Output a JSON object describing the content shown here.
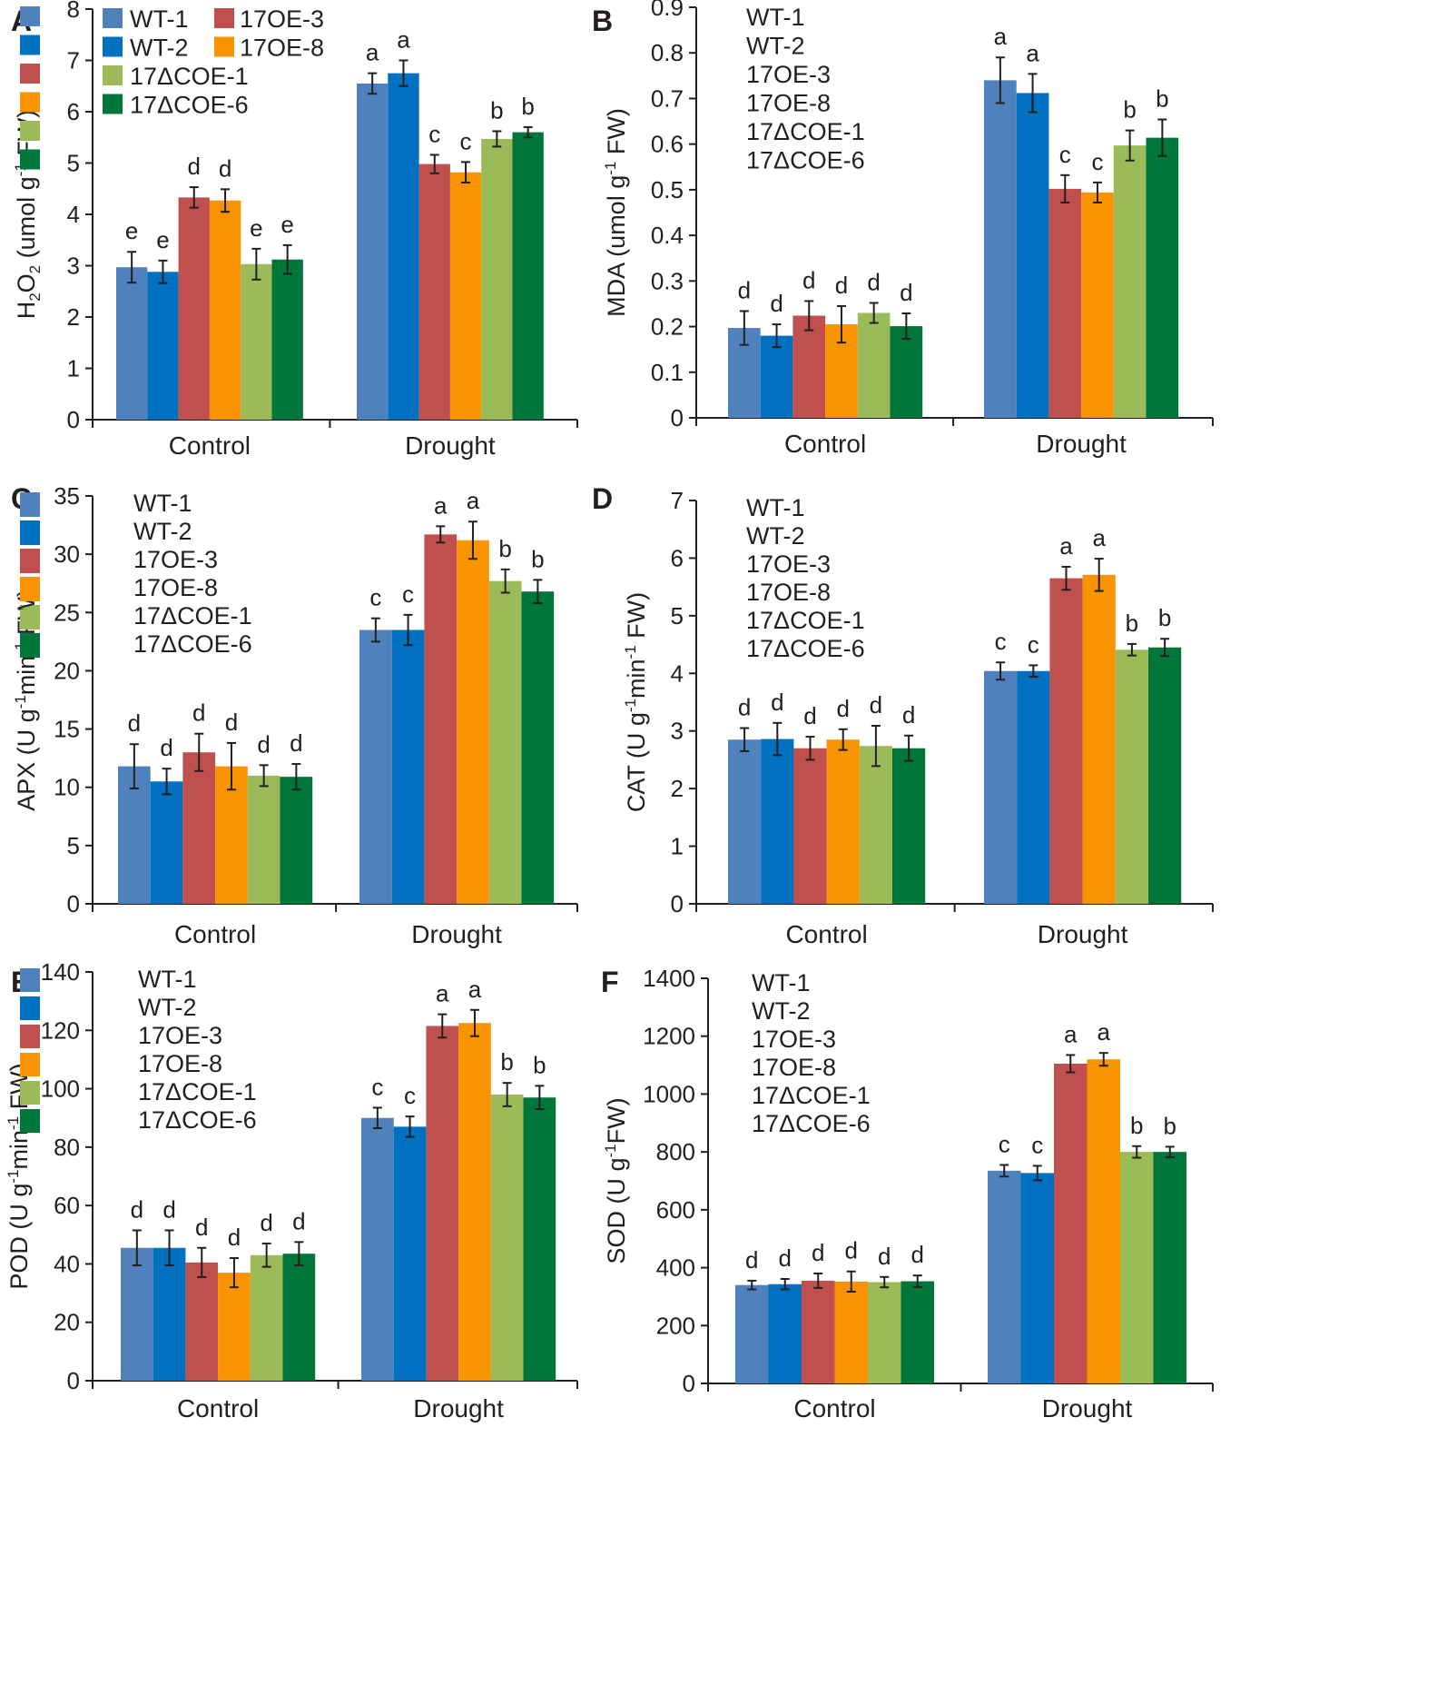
{
  "colors": {
    "WT-1": "#4f81bd",
    "WT-2": "#0070c0",
    "17OE-3": "#c0504d",
    "17OE-8": "#f79400",
    "17ΔCOE-1": "#9bbb59",
    "17ΔCOE-6": "#00763a"
  },
  "chart_data": [
    {
      "panel": "A",
      "type": "bar",
      "categories": [
        "Control",
        "Drought"
      ],
      "ylim": [
        0,
        8
      ],
      "yticks": [
        0,
        1,
        2,
        3,
        4,
        5,
        6,
        7,
        8
      ],
      "ylabel": {
        "pre": "H",
        "sub": "2",
        "mid": "O",
        "sub2": "2",
        "post": " (umol g",
        "sup": "-1",
        "tail": " FW)"
      },
      "legend_layout": "two-column",
      "legend_order": [
        "WT-1",
        "17OE-3",
        "WT-2",
        "17OE-8",
        "17ΔCOE-1",
        "17ΔCOE-6"
      ],
      "series": [
        {
          "name": "WT-1",
          "values": [
            2.97,
            6.55
          ],
          "errors": [
            0.3,
            0.2
          ],
          "letters": [
            "e",
            "a"
          ]
        },
        {
          "name": "WT-2",
          "values": [
            2.88,
            6.75
          ],
          "errors": [
            0.22,
            0.25
          ],
          "letters": [
            "e",
            "a"
          ]
        },
        {
          "name": "17OE-3",
          "values": [
            4.33,
            4.98
          ],
          "errors": [
            0.2,
            0.18
          ],
          "letters": [
            "d",
            "c"
          ]
        },
        {
          "name": "17OE-8",
          "values": [
            4.27,
            4.82
          ],
          "errors": [
            0.22,
            0.2
          ],
          "letters": [
            "d",
            "c"
          ]
        },
        {
          "name": "17ΔCOE-1",
          "values": [
            3.03,
            5.47
          ],
          "errors": [
            0.3,
            0.15
          ],
          "letters": [
            "e",
            "b"
          ]
        },
        {
          "name": "17ΔCOE-6",
          "values": [
            3.12,
            5.6
          ],
          "errors": [
            0.28,
            0.1
          ],
          "letters": [
            "e",
            "b"
          ]
        }
      ]
    },
    {
      "panel": "B",
      "type": "bar",
      "categories": [
        "Control",
        "Drought"
      ],
      "ylim": [
        0,
        0.9
      ],
      "yticks": [
        "0",
        "0.1",
        "0.2",
        "0.3",
        "0.4",
        "0.5",
        "0.6",
        "0.7",
        "0.8",
        "0.9"
      ],
      "ylabel": {
        "pre": "MDA (umol g",
        "sup": "-1",
        "tail": " FW)"
      },
      "legend_layout": "one-column",
      "legend_order": [
        "WT-1",
        "WT-2",
        "17OE-3",
        "17OE-8",
        "17ΔCOE-1",
        "17ΔCOE-6"
      ],
      "series": [
        {
          "name": "WT-1",
          "values": [
            0.197,
            0.74
          ],
          "errors": [
            0.037,
            0.05
          ],
          "letters": [
            "d",
            "a"
          ]
        },
        {
          "name": "WT-2",
          "values": [
            0.18,
            0.712
          ],
          "errors": [
            0.025,
            0.042
          ],
          "letters": [
            "d",
            "a"
          ]
        },
        {
          "name": "17OE-3",
          "values": [
            0.224,
            0.502
          ],
          "errors": [
            0.032,
            0.03
          ],
          "letters": [
            "d",
            "c"
          ]
        },
        {
          "name": "17OE-8",
          "values": [
            0.205,
            0.494
          ],
          "errors": [
            0.04,
            0.022
          ],
          "letters": [
            "d",
            "c"
          ]
        },
        {
          "name": "17ΔCOE-1",
          "values": [
            0.23,
            0.597
          ],
          "errors": [
            0.022,
            0.033
          ],
          "letters": [
            "d",
            "b"
          ]
        },
        {
          "name": "17ΔCOE-6",
          "values": [
            0.201,
            0.614
          ],
          "errors": [
            0.028,
            0.04
          ],
          "letters": [
            "d",
            "b"
          ]
        }
      ]
    },
    {
      "panel": "C",
      "type": "bar",
      "categories": [
        "Control",
        "Drought"
      ],
      "ylim": [
        0,
        35
      ],
      "yticks": [
        0,
        5,
        10,
        15,
        20,
        25,
        30,
        35
      ],
      "ylabel": {
        "pre": "APX (U g",
        "sup": "-1",
        "mid": "min",
        "sup2": "-1",
        "tail": " FW)"
      },
      "legend_layout": "one-column",
      "legend_order": [
        "WT-1",
        "WT-2",
        "17OE-3",
        "17OE-8",
        "17ΔCOE-1",
        "17ΔCOE-6"
      ],
      "series": [
        {
          "name": "WT-1",
          "values": [
            11.8,
            23.5
          ],
          "errors": [
            1.9,
            1.0
          ],
          "letters": [
            "d",
            "c"
          ]
        },
        {
          "name": "WT-2",
          "values": [
            10.5,
            23.5
          ],
          "errors": [
            1.1,
            1.3
          ],
          "letters": [
            "d",
            "c"
          ]
        },
        {
          "name": "17OE-3",
          "values": [
            13.0,
            31.7
          ],
          "errors": [
            1.6,
            0.7
          ],
          "letters": [
            "d",
            "a"
          ]
        },
        {
          "name": "17OE-8",
          "values": [
            11.8,
            31.2
          ],
          "errors": [
            2.0,
            1.6
          ],
          "letters": [
            "d",
            "a"
          ]
        },
        {
          "name": "17ΔCOE-1",
          "values": [
            11.0,
            27.7
          ],
          "errors": [
            0.9,
            1.0
          ],
          "letters": [
            "d",
            "b"
          ]
        },
        {
          "name": "17ΔCOE-6",
          "values": [
            10.9,
            26.8
          ],
          "errors": [
            1.1,
            1.0
          ],
          "letters": [
            "d",
            "b"
          ]
        }
      ]
    },
    {
      "panel": "D",
      "type": "bar",
      "categories": [
        "Control",
        "Drought"
      ],
      "ylim": [
        0,
        7
      ],
      "yticks": [
        0,
        1,
        2,
        3,
        4,
        5,
        6,
        7
      ],
      "ylabel": {
        "pre": "CAT (U g",
        "sup": "-1",
        "mid": "min",
        "sup2": "-1",
        "tail": " FW)"
      },
      "legend_layout": "one-column",
      "legend_order": [
        "WT-1",
        "WT-2",
        "17OE-3",
        "17OE-8",
        "17ΔCOE-1",
        "17ΔCOE-6"
      ],
      "series": [
        {
          "name": "WT-1",
          "values": [
            2.85,
            4.04
          ],
          "errors": [
            0.2,
            0.15
          ],
          "letters": [
            "d",
            "c"
          ]
        },
        {
          "name": "WT-2",
          "values": [
            2.86,
            4.04
          ],
          "errors": [
            0.28,
            0.1
          ],
          "letters": [
            "d",
            "c"
          ]
        },
        {
          "name": "17OE-3",
          "values": [
            2.7,
            5.65
          ],
          "errors": [
            0.2,
            0.2
          ],
          "letters": [
            "d",
            "a"
          ]
        },
        {
          "name": "17OE-8",
          "values": [
            2.85,
            5.71
          ],
          "errors": [
            0.18,
            0.28
          ],
          "letters": [
            "d",
            "a"
          ]
        },
        {
          "name": "17ΔCOE-1",
          "values": [
            2.74,
            4.41
          ],
          "errors": [
            0.35,
            0.1
          ],
          "letters": [
            "d",
            "b"
          ]
        },
        {
          "name": "17ΔCOE-6",
          "values": [
            2.7,
            4.45
          ],
          "errors": [
            0.22,
            0.15
          ],
          "letters": [
            "d",
            "b"
          ]
        }
      ]
    },
    {
      "panel": "E",
      "type": "bar",
      "categories": [
        "Control",
        "Drought"
      ],
      "ylim": [
        0,
        140
      ],
      "yticks": [
        0,
        20,
        40,
        60,
        80,
        100,
        120,
        140
      ],
      "ylabel": {
        "pre": "POD (U g",
        "sup": "-1",
        "mid": "min",
        "sup2": "-1",
        "tail": " FW)"
      },
      "legend_layout": "one-column",
      "legend_order": [
        "WT-1",
        "WT-2",
        "17OE-3",
        "17OE-8",
        "17ΔCOE-1",
        "17ΔCOE-6"
      ],
      "series": [
        {
          "name": "WT-1",
          "values": [
            45.5,
            90.0
          ],
          "errors": [
            6.0,
            3.5
          ],
          "letters": [
            "d",
            "c"
          ]
        },
        {
          "name": "WT-2",
          "values": [
            45.5,
            87.0
          ],
          "errors": [
            6.0,
            3.5
          ],
          "letters": [
            "d",
            "c"
          ]
        },
        {
          "name": "17OE-3",
          "values": [
            40.5,
            121.5
          ],
          "errors": [
            5.0,
            4.0
          ],
          "letters": [
            "d",
            "a"
          ]
        },
        {
          "name": "17OE-8",
          "values": [
            37.0,
            122.5
          ],
          "errors": [
            5.0,
            4.5
          ],
          "letters": [
            "d",
            "a"
          ]
        },
        {
          "name": "17ΔCOE-1",
          "values": [
            43.0,
            98.0
          ],
          "errors": [
            4.0,
            4.0
          ],
          "letters": [
            "d",
            "b"
          ]
        },
        {
          "name": "17ΔCOE-6",
          "values": [
            43.5,
            97.0
          ],
          "errors": [
            4.0,
            4.0
          ],
          "letters": [
            "d",
            "b"
          ]
        }
      ]
    },
    {
      "panel": "F",
      "type": "bar",
      "categories": [
        "Control",
        "Drought"
      ],
      "ylim": [
        0,
        1400
      ],
      "yticks": [
        0,
        200,
        400,
        600,
        800,
        1000,
        1200,
        1400
      ],
      "ylabel": {
        "pre": "SOD (U g",
        "sup": "-1",
        "tail": "FW)"
      },
      "legend_layout": "one-column",
      "legend_order": [
        "WT-1",
        "WT-2",
        "17OE-3",
        "17OE-8",
        "17ΔCOE-1",
        "17ΔCOE-6"
      ],
      "series": [
        {
          "name": "WT-1",
          "values": [
            340,
            735
          ],
          "errors": [
            15,
            20
          ],
          "letters": [
            "d",
            "c"
          ]
        },
        {
          "name": "WT-2",
          "values": [
            343,
            727
          ],
          "errors": [
            18,
            25
          ],
          "letters": [
            "d",
            "c"
          ]
        },
        {
          "name": "17OE-3",
          "values": [
            355,
            1105
          ],
          "errors": [
            25,
            30
          ],
          "letters": [
            "d",
            "a"
          ]
        },
        {
          "name": "17OE-8",
          "values": [
            352,
            1120
          ],
          "errors": [
            35,
            22
          ],
          "letters": [
            "d",
            "a"
          ]
        },
        {
          "name": "17ΔCOE-1",
          "values": [
            350,
            800
          ],
          "errors": [
            18,
            20
          ],
          "letters": [
            "d",
            "b"
          ]
        },
        {
          "name": "17ΔCOE-6",
          "values": [
            353,
            800
          ],
          "errors": [
            20,
            18
          ],
          "letters": [
            "d",
            "b"
          ]
        }
      ]
    }
  ]
}
